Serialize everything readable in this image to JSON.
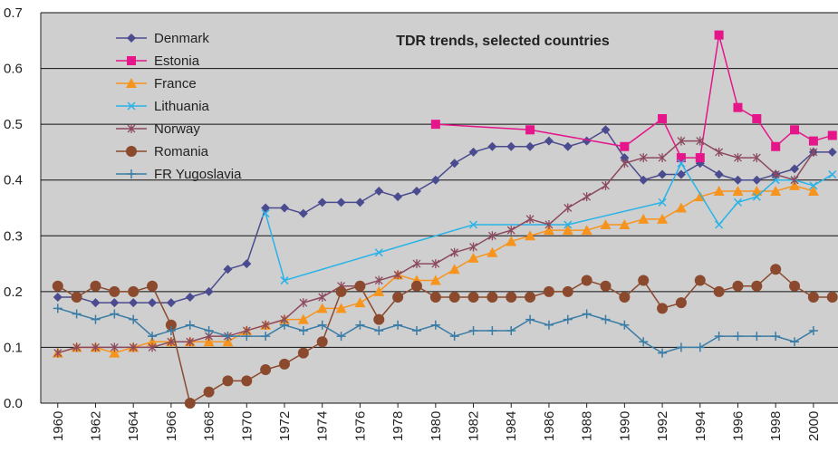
{
  "chart_data": {
    "type": "line",
    "title": "TDR trends, selected countries",
    "x": [
      1960,
      1961,
      1962,
      1963,
      1964,
      1965,
      1966,
      1967,
      1968,
      1969,
      1970,
      1971,
      1972,
      1973,
      1974,
      1975,
      1976,
      1977,
      1978,
      1979,
      1980,
      1981,
      1982,
      1983,
      1984,
      1985,
      1986,
      1987,
      1988,
      1989,
      1990,
      1991,
      1992,
      1993,
      1994,
      1995,
      1996,
      1997,
      1998,
      1999,
      2000,
      2001
    ],
    "xlim": [
      1959.1,
      2001.3
    ],
    "xticks": [
      1960,
      1962,
      1964,
      1966,
      1968,
      1970,
      1972,
      1974,
      1976,
      1978,
      1980,
      1982,
      1984,
      1986,
      1988,
      1990,
      1992,
      1994,
      1996,
      1998,
      2000
    ],
    "ylim": [
      0,
      0.7
    ],
    "yticks": [
      {
        "value": 0,
        "label": "0.0"
      },
      0.1,
      0.2,
      0.3,
      0.4,
      0.5,
      0.6,
      0.7
    ],
    "grid": true,
    "legend": "upper left",
    "series": [
      {
        "name": "Denmark",
        "color": "#4b4b8f",
        "marker": "diamond",
        "values": [
          0.19,
          0.19,
          0.18,
          0.18,
          0.18,
          0.18,
          0.18,
          0.19,
          0.2,
          0.24,
          0.25,
          0.35,
          0.35,
          0.34,
          0.36,
          0.36,
          0.36,
          0.38,
          0.37,
          0.38,
          0.4,
          0.43,
          0.45,
          0.46,
          0.46,
          0.46,
          0.47,
          0.46,
          0.47,
          0.49,
          0.44,
          0.4,
          0.41,
          0.41,
          0.43,
          0.41,
          0.4,
          0.4,
          0.41,
          0.42,
          0.45,
          0.45
        ]
      },
      {
        "name": "Estonia",
        "color": "#e5158a",
        "marker": "square",
        "x": [
          1980,
          1985,
          1990,
          1992,
          1993,
          1994,
          1995,
          1996,
          1997,
          1998,
          1999,
          2000,
          2001
        ],
        "values": [
          0.5,
          0.49,
          0.46,
          0.51,
          0.44,
          0.44,
          0.66,
          0.53,
          0.51,
          0.46,
          0.49,
          0.47,
          0.48
        ]
      },
      {
        "name": "France",
        "color": "#f7941d",
        "marker": "triangle",
        "values": [
          0.09,
          0.1,
          0.1,
          0.09,
          0.1,
          0.11,
          0.11,
          0.11,
          0.11,
          0.11,
          0.13,
          0.14,
          0.15,
          0.15,
          0.17,
          0.17,
          0.18,
          0.2,
          0.23,
          0.22,
          0.22,
          0.24,
          0.26,
          0.27,
          0.29,
          0.3,
          0.31,
          0.31,
          0.31,
          0.32,
          0.32,
          0.33,
          0.33,
          0.35,
          0.37,
          0.38,
          0.38,
          0.38,
          0.38,
          0.39,
          0.38,
          null
        ]
      },
      {
        "name": "Lithuania",
        "color": "#29b3e6",
        "marker": "x",
        "x": [
          1971,
          1972,
          1977,
          1982,
          1987,
          1992,
          1993,
          1995,
          1996,
          1997,
          1998,
          1999,
          2000,
          2001
        ],
        "values": [
          0.34,
          0.22,
          0.27,
          0.32,
          0.32,
          0.36,
          0.43,
          0.32,
          0.36,
          0.37,
          0.4,
          0.4,
          0.39,
          0.41
        ]
      },
      {
        "name": "Norway",
        "color": "#8c4a5e",
        "marker": "star",
        "values": [
          0.09,
          0.1,
          0.1,
          0.1,
          0.1,
          0.1,
          0.11,
          0.11,
          0.12,
          0.12,
          0.13,
          0.14,
          0.15,
          0.18,
          0.19,
          0.21,
          0.21,
          0.22,
          0.23,
          0.25,
          0.25,
          0.27,
          0.28,
          0.3,
          0.31,
          0.33,
          0.32,
          0.35,
          0.37,
          0.39,
          0.43,
          0.44,
          0.44,
          0.47,
          0.47,
          0.45,
          0.44,
          0.44,
          0.41,
          0.4,
          0.45,
          null
        ]
      },
      {
        "name": "Romania",
        "color": "#8b4a2e",
        "marker": "circle",
        "values": [
          0.21,
          0.19,
          0.21,
          0.2,
          0.2,
          0.21,
          0.14,
          0.0,
          0.02,
          0.04,
          0.04,
          0.06,
          0.07,
          0.09,
          0.11,
          0.2,
          0.21,
          0.15,
          0.19,
          0.21,
          0.19,
          0.19,
          0.19,
          0.19,
          0.19,
          0.19,
          0.2,
          0.2,
          0.22,
          0.21,
          0.19,
          0.22,
          0.17,
          0.18,
          0.22,
          0.2,
          0.21,
          0.21,
          0.24,
          0.21,
          0.19,
          0.19
        ]
      },
      {
        "name": "FR Yugoslavia",
        "color": "#3a7ca5",
        "marker": "plus",
        "values": [
          0.17,
          0.16,
          0.15,
          0.16,
          0.15,
          0.12,
          0.13,
          0.14,
          0.13,
          0.12,
          0.12,
          0.12,
          0.14,
          0.13,
          0.14,
          0.12,
          0.14,
          0.13,
          0.14,
          0.13,
          0.14,
          0.12,
          0.13,
          0.13,
          0.13,
          0.15,
          0.14,
          0.15,
          0.16,
          0.15,
          0.14,
          0.11,
          0.09,
          0.1,
          0.1,
          0.12,
          0.12,
          0.12,
          0.12,
          0.11,
          0.13,
          null
        ]
      }
    ]
  }
}
